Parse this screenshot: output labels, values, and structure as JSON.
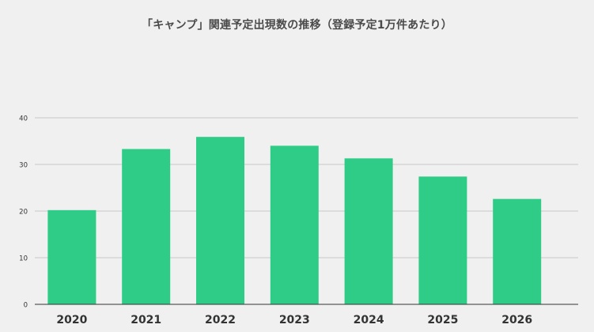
{
  "chart_data": {
    "type": "bar",
    "title": "「キャンプ」関連予定出現数の推移（登録予定1万件あたり）",
    "xlabel": "",
    "ylabel": "",
    "categories": [
      "2020",
      "2021",
      "2022",
      "2023",
      "2024",
      "2025",
      "2026"
    ],
    "values": [
      20.2,
      33.3,
      35.9,
      34.0,
      31.3,
      27.4,
      22.6
    ],
    "ylim": [
      0,
      40
    ],
    "yticks": [
      0,
      10,
      20,
      30,
      40
    ],
    "grid": true,
    "legend": "none",
    "colors": {
      "bar": "#2ecc87",
      "grid": "#c8c8c8",
      "axis": "#333333",
      "background": "#f0f0f0"
    }
  }
}
